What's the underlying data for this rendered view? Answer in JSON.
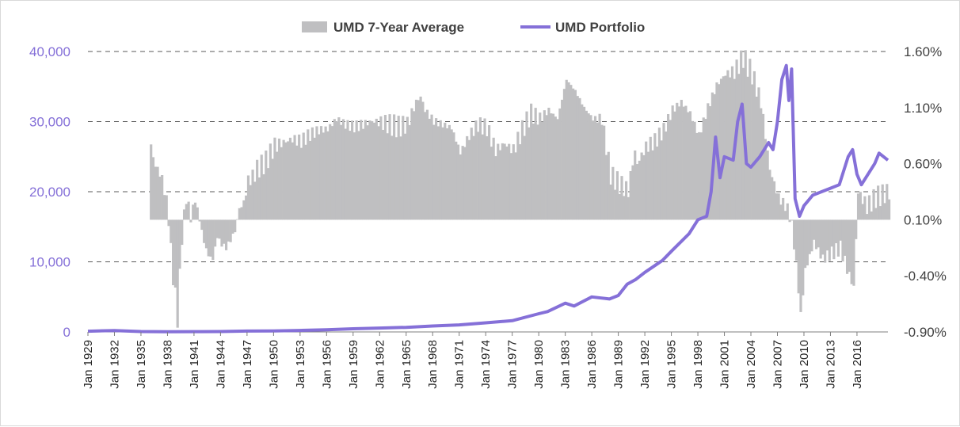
{
  "chart_data": {
    "type": "bar+line",
    "title": "",
    "legend": {
      "placement": "top-center",
      "items": [
        {
          "name": "UMD 7-Year Average",
          "kind": "area"
        },
        {
          "name": "UMD Portfolio",
          "kind": "line"
        }
      ]
    },
    "colors": {
      "average": "#bfbfc1",
      "portfolio": "#8570d8",
      "left_axis_text": "#8570d8",
      "grid": "#595959"
    },
    "grid": true,
    "x_ticks": [
      "Jan 1929",
      "Jan 1932",
      "Jan 1935",
      "Jan 1938",
      "Jan 1941",
      "Jan 1944",
      "Jan 1947",
      "Jan 1950",
      "Jan 1953",
      "Jan 1956",
      "Jan 1959",
      "Jan 1962",
      "Jan 1965",
      "Jan 1968",
      "Jan 1971",
      "Jan 1974",
      "Jan 1977",
      "Jan 1980",
      "Jan 1983",
      "Jan 1986",
      "Jan 1989",
      "Jan 1992",
      "Jan 1995",
      "Jan 1998",
      "Jan 2001",
      "Jan 2004",
      "Jan 2007",
      "Jan 2010",
      "Jan 2013",
      "Jan 2016"
    ],
    "x_range": [
      1929.0,
      2019.5
    ],
    "y_left": {
      "min": 0,
      "max": 40000,
      "ticks": [
        "0",
        "10,000",
        "20,000",
        "30,000",
        "40,000"
      ]
    },
    "y_right": {
      "min": -0.9,
      "max": 1.6,
      "unit": "%",
      "ticks": [
        "-0.90%",
        "-0.40%",
        "0.10%",
        "0.60%",
        "1.10%",
        "1.60%"
      ]
    },
    "series": [
      {
        "name": "UMD 7-Year Average",
        "axis": "right",
        "type": "area",
        "points": [
          [
            1936.0,
            0.75
          ],
          [
            1936.5,
            0.58
          ],
          [
            1937.0,
            0.52
          ],
          [
            1937.5,
            0.38
          ],
          [
            1938.0,
            0.12
          ],
          [
            1938.3,
            -0.25
          ],
          [
            1938.7,
            -0.55
          ],
          [
            1939.0,
            -0.78
          ],
          [
            1939.5,
            -0.05
          ],
          [
            1940.0,
            0.3
          ],
          [
            1940.5,
            0.12
          ],
          [
            1941.0,
            0.28
          ],
          [
            1941.5,
            0.1
          ],
          [
            1942.0,
            -0.1
          ],
          [
            1942.5,
            -0.22
          ],
          [
            1943.0,
            -0.25
          ],
          [
            1943.5,
            -0.05
          ],
          [
            1944.0,
            -0.12
          ],
          [
            1944.5,
            -0.15
          ],
          [
            1945.0,
            -0.08
          ],
          [
            1945.5,
            0.0
          ],
          [
            1946.0,
            0.2
          ],
          [
            1946.5,
            0.25
          ],
          [
            1947.0,
            0.45
          ],
          [
            1947.5,
            0.48
          ],
          [
            1948.0,
            0.55
          ],
          [
            1949.0,
            0.62
          ],
          [
            1950.0,
            0.76
          ],
          [
            1951.0,
            0.79
          ],
          [
            1952.0,
            0.82
          ],
          [
            1953.0,
            0.8
          ],
          [
            1954.0,
            0.86
          ],
          [
            1955.0,
            0.9
          ],
          [
            1956.0,
            0.91
          ],
          [
            1957.0,
            1.0
          ],
          [
            1958.0,
            0.95
          ],
          [
            1959.0,
            0.93
          ],
          [
            1960.0,
            0.95
          ],
          [
            1961.0,
            0.98
          ],
          [
            1962.0,
            0.97
          ],
          [
            1963.0,
            0.95
          ],
          [
            1964.0,
            0.93
          ],
          [
            1965.0,
            0.95
          ],
          [
            1966.0,
            1.15
          ],
          [
            1966.5,
            1.2
          ],
          [
            1967.0,
            1.08
          ],
          [
            1968.0,
            0.98
          ],
          [
            1969.0,
            0.95
          ],
          [
            1970.0,
            0.92
          ],
          [
            1971.0,
            0.7
          ],
          [
            1972.0,
            0.85
          ],
          [
            1973.0,
            0.95
          ],
          [
            1974.0,
            0.92
          ],
          [
            1975.0,
            0.72
          ],
          [
            1976.0,
            0.78
          ],
          [
            1977.0,
            0.72
          ],
          [
            1978.0,
            0.9
          ],
          [
            1979.0,
            1.05
          ],
          [
            1980.0,
            1.0
          ],
          [
            1981.0,
            1.08
          ],
          [
            1982.0,
            1.0
          ],
          [
            1983.0,
            1.35
          ],
          [
            1984.0,
            1.25
          ],
          [
            1985.0,
            1.1
          ],
          [
            1986.0,
            1.0
          ],
          [
            1987.0,
            1.0
          ],
          [
            1988.0,
            0.5
          ],
          [
            1989.0,
            0.42
          ],
          [
            1990.0,
            0.36
          ],
          [
            1990.7,
            0.72
          ],
          [
            1991.0,
            0.6
          ],
          [
            1992.0,
            0.75
          ],
          [
            1993.0,
            0.8
          ],
          [
            1994.0,
            0.9
          ],
          [
            1995.0,
            1.08
          ],
          [
            1996.0,
            1.15
          ],
          [
            1997.0,
            1.05
          ],
          [
            1998.0,
            0.85
          ],
          [
            1999.0,
            1.1
          ],
          [
            2000.0,
            1.3
          ],
          [
            2001.0,
            1.4
          ],
          [
            2002.0,
            1.42
          ],
          [
            2003.0,
            1.55
          ],
          [
            2004.0,
            1.4
          ],
          [
            2005.0,
            1.15
          ],
          [
            2006.0,
            0.55
          ],
          [
            2007.0,
            0.3
          ],
          [
            2008.0,
            0.2
          ],
          [
            2008.5,
            0.05
          ],
          [
            2009.0,
            -0.3
          ],
          [
            2009.5,
            -0.75
          ],
          [
            2010.0,
            -0.35
          ],
          [
            2011.0,
            -0.1
          ],
          [
            2012.0,
            -0.25
          ],
          [
            2013.0,
            -0.2
          ],
          [
            2014.0,
            -0.15
          ],
          [
            2015.0,
            -0.4
          ],
          [
            2015.5,
            -0.5
          ],
          [
            2016.0,
            0.35
          ],
          [
            2017.0,
            0.22
          ],
          [
            2018.0,
            0.3
          ],
          [
            2019.5,
            0.35
          ]
        ]
      },
      {
        "name": "UMD Portfolio",
        "axis": "left",
        "type": "line",
        "points": [
          [
            1929.0,
            100
          ],
          [
            1932.0,
            200
          ],
          [
            1935.0,
            60
          ],
          [
            1938.0,
            30
          ],
          [
            1941.0,
            40
          ],
          [
            1944.0,
            60
          ],
          [
            1947.0,
            120
          ],
          [
            1950.0,
            150
          ],
          [
            1953.0,
            220
          ],
          [
            1956.0,
            300
          ],
          [
            1959.0,
            450
          ],
          [
            1962.0,
            550
          ],
          [
            1965.0,
            650
          ],
          [
            1968.0,
            850
          ],
          [
            1971.0,
            1000
          ],
          [
            1974.0,
            1300
          ],
          [
            1977.0,
            1600
          ],
          [
            1980.0,
            2600
          ],
          [
            1981.0,
            2900
          ],
          [
            1983.0,
            4100
          ],
          [
            1984.0,
            3700
          ],
          [
            1986.0,
            5000
          ],
          [
            1988.0,
            4700
          ],
          [
            1989.0,
            5200
          ],
          [
            1990.0,
            6800
          ],
          [
            1991.0,
            7500
          ],
          [
            1992.0,
            8500
          ],
          [
            1994.0,
            10200
          ],
          [
            1995.0,
            11500
          ],
          [
            1997.0,
            14000
          ],
          [
            1998.0,
            16000
          ],
          [
            1999.0,
            16500
          ],
          [
            1999.5,
            20000
          ],
          [
            2000.0,
            27800
          ],
          [
            2000.5,
            22000
          ],
          [
            2001.0,
            25000
          ],
          [
            2002.0,
            24500
          ],
          [
            2002.5,
            30000
          ],
          [
            2003.0,
            32500
          ],
          [
            2003.5,
            24000
          ],
          [
            2004.0,
            23500
          ],
          [
            2005.0,
            25000
          ],
          [
            2006.0,
            27000
          ],
          [
            2006.5,
            26000
          ],
          [
            2007.0,
            30000
          ],
          [
            2007.5,
            36000
          ],
          [
            2008.0,
            38000
          ],
          [
            2008.3,
            33000
          ],
          [
            2008.6,
            37500
          ],
          [
            2009.0,
            19000
          ],
          [
            2009.5,
            16500
          ],
          [
            2010.0,
            18000
          ],
          [
            2011.0,
            19500
          ],
          [
            2012.0,
            20000
          ],
          [
            2013.0,
            20500
          ],
          [
            2014.0,
            21000
          ],
          [
            2015.0,
            25000
          ],
          [
            2015.5,
            26000
          ],
          [
            2016.0,
            22500
          ],
          [
            2016.5,
            21000
          ],
          [
            2017.0,
            22000
          ],
          [
            2018.0,
            24000
          ],
          [
            2018.5,
            25500
          ],
          [
            2019.5,
            24500
          ]
        ]
      }
    ]
  }
}
